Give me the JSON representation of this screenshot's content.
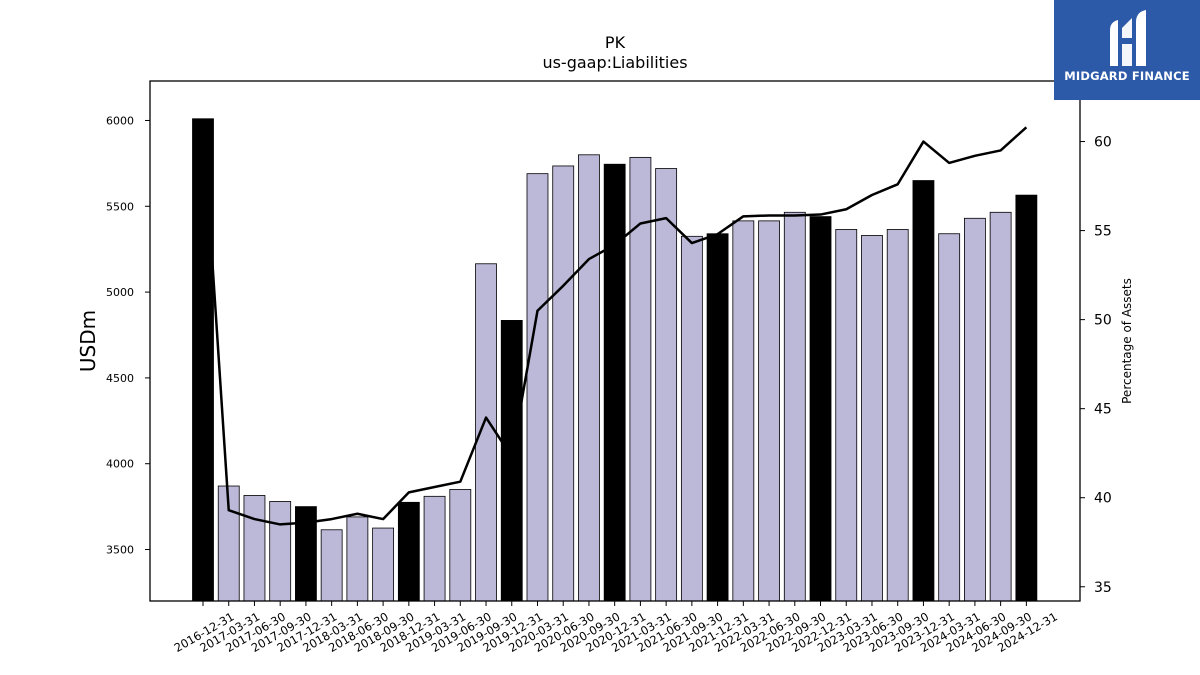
{
  "chart_data": {
    "type": "bar",
    "title": "PK",
    "subtitle": "us-gaap:Liabilities",
    "ylabel": "USDm",
    "y2label": "Percentage of Assets",
    "ylim": [
      3200,
      6230
    ],
    "y2lim": [
      34.2,
      63.4
    ],
    "yticks": [
      3500,
      4000,
      4500,
      5000,
      5500,
      6000
    ],
    "y2ticks": [
      35,
      40,
      45,
      50,
      55,
      60
    ],
    "categories": [
      "2016-12-31",
      "2017-03-31",
      "2017-06-30",
      "2017-09-30",
      "2017-12-31",
      "2018-03-31",
      "2018-06-30",
      "2018-09-30",
      "2018-12-31",
      "2019-03-31",
      "2019-06-30",
      "2019-09-30",
      "2019-12-31",
      "2020-03-31",
      "2020-06-30",
      "2020-09-30",
      "2020-12-31",
      "2021-03-31",
      "2021-06-30",
      "2021-09-30",
      "2021-12-31",
      "2022-03-31",
      "2022-06-30",
      "2022-09-30",
      "2022-12-31",
      "2023-03-31",
      "2023-06-30",
      "2023-09-30",
      "2023-12-31",
      "2024-03-31",
      "2024-06-30",
      "2024-09-30",
      "2024-12-31"
    ],
    "series": [
      {
        "kind": "bar",
        "values": [
          6010,
          3870,
          3815,
          3780,
          3750,
          3615,
          3690,
          3625,
          3775,
          3810,
          3850,
          5165,
          4835,
          5690,
          5735,
          5800,
          5745,
          5785,
          5720,
          5325,
          5340,
          5415,
          5415,
          5465,
          5440,
          5365,
          5330,
          5365,
          5650,
          5340,
          5430,
          5465,
          5565
        ],
        "highlight": [
          true,
          false,
          false,
          false,
          true,
          false,
          false,
          false,
          true,
          false,
          false,
          false,
          true,
          false,
          false,
          false,
          true,
          false,
          false,
          false,
          true,
          false,
          false,
          false,
          true,
          false,
          false,
          false,
          true,
          false,
          false,
          false,
          true
        ]
      },
      {
        "kind": "line",
        "axis": "right",
        "values": [
          61.2,
          39.3,
          38.8,
          38.5,
          38.6,
          38.8,
          39.1,
          38.8,
          40.3,
          40.6,
          40.9,
          44.5,
          42.3,
          50.5,
          51.9,
          53.4,
          54.2,
          55.4,
          55.7,
          54.3,
          54.8,
          55.8,
          55.85,
          55.85,
          55.9,
          56.2,
          57.0,
          57.6,
          60.0,
          58.8,
          59.2,
          59.5,
          60.8
        ]
      }
    ],
    "colors": {
      "bar": "#bcb8d8",
      "bar_highlight": "#000000",
      "line": "#000000"
    },
    "grid": false
  },
  "logo": {
    "text": "MIDGARD FINANCE",
    "bg": "#2c5aa8"
  }
}
